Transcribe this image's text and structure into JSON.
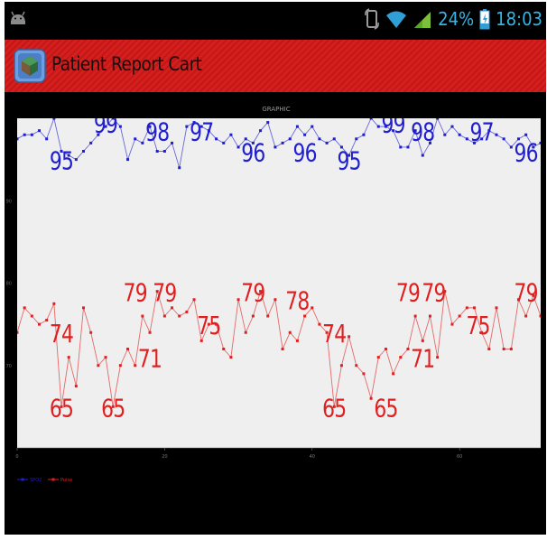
{
  "status_bar": {
    "battery": "24%",
    "time": "18:03",
    "icons": [
      "android-icon",
      "screen-rotation-icon",
      "wifi-icon",
      "signal-icon",
      "battery-charging-icon"
    ]
  },
  "action_bar": {
    "title": "Patient Report Cart",
    "icon": "app-logo-icon"
  },
  "chart_data": {
    "type": "line",
    "title": "GRAPHIC",
    "xlim": [
      0,
      71
    ],
    "ylim": [
      60,
      100
    ],
    "x_ticks": [
      "0",
      "20",
      "40",
      "60"
    ],
    "y_ticks": [
      "70",
      "80",
      "90"
    ],
    "series": [
      {
        "name": "SpO2",
        "color": "#1f1fd0",
        "values": [
          97.5,
          98,
          98,
          98.5,
          97.5,
          100,
          96,
          95.5,
          95,
          96,
          97,
          98,
          99,
          100,
          99,
          95,
          97.5,
          97,
          99,
          96,
          96,
          97,
          94,
          99,
          99.5,
          99,
          98.5,
          97.5,
          97,
          98,
          96.5,
          97.5,
          97,
          98.5,
          99.5,
          96.5,
          97,
          97.5,
          99,
          98,
          99,
          97.5,
          97,
          97.5,
          96.5,
          95.5,
          97.5,
          98,
          100,
          99,
          99,
          98.5,
          96.5,
          96.5,
          98.5,
          95.5,
          97,
          100,
          98,
          99,
          98,
          97.5,
          97,
          97.5,
          98.5,
          98,
          97.5,
          96.5,
          97.5,
          98,
          96.5,
          97
        ],
        "labels": [
          {
            "x": 6,
            "y": 95,
            "text": "95"
          },
          {
            "x": 12,
            "y": 99.5,
            "text": "99"
          },
          {
            "x": 19,
            "y": 98.5,
            "text": "98"
          },
          {
            "x": 25,
            "y": 98.5,
            "text": "97"
          },
          {
            "x": 32,
            "y": 96,
            "text": "96"
          },
          {
            "x": 39,
            "y": 96,
            "text": "96"
          },
          {
            "x": 45,
            "y": 95,
            "text": "95"
          },
          {
            "x": 51,
            "y": 99.5,
            "text": "99"
          },
          {
            "x": 55,
            "y": 98.5,
            "text": "98"
          },
          {
            "x": 63,
            "y": 98.5,
            "text": "97"
          },
          {
            "x": 69,
            "y": 96,
            "text": "96"
          }
        ]
      },
      {
        "name": "Pulse",
        "color": "#e02020",
        "values": [
          74,
          77,
          76,
          75,
          75.5,
          77.5,
          65,
          71,
          67.5,
          77,
          74,
          70,
          71,
          65,
          70,
          72,
          70,
          76,
          74,
          79,
          76,
          77,
          76,
          76.5,
          78,
          73,
          75,
          75,
          72,
          71,
          78,
          74,
          76,
          79,
          76,
          78,
          72,
          74,
          73,
          76,
          77,
          75,
          74,
          65,
          70,
          73.5,
          70,
          69,
          66,
          71,
          72,
          69,
          71,
          72,
          76,
          73,
          76,
          71,
          79,
          75,
          76,
          77,
          77,
          74,
          72,
          77,
          72,
          72,
          78,
          76,
          78.5,
          76,
          78
        ]
      }
    ],
    "pulse_labels": [
      {
        "x": 6,
        "y": 74,
        "text": "74"
      },
      {
        "x": 6,
        "y": 65,
        "text": "65"
      },
      {
        "x": 13,
        "y": 65,
        "text": "65"
      },
      {
        "x": 16,
        "y": 79,
        "text": "79"
      },
      {
        "x": 18,
        "y": 71,
        "text": "71"
      },
      {
        "x": 20,
        "y": 79,
        "text": "79"
      },
      {
        "x": 26,
        "y": 75,
        "text": "75"
      },
      {
        "x": 32,
        "y": 79,
        "text": "79"
      },
      {
        "x": 38,
        "y": 78,
        "text": "78"
      },
      {
        "x": 43,
        "y": 74,
        "text": "74"
      },
      {
        "x": 43,
        "y": 65,
        "text": "65"
      },
      {
        "x": 50,
        "y": 65,
        "text": "65"
      },
      {
        "x": 53,
        "y": 79,
        "text": "79"
      },
      {
        "x": 55,
        "y": 71,
        "text": "71"
      },
      {
        "x": 56.5,
        "y": 79,
        "text": "79"
      },
      {
        "x": 62.5,
        "y": 75,
        "text": "75"
      },
      {
        "x": 69,
        "y": 79,
        "text": "79"
      }
    ],
    "legend_placement": "bottom-left",
    "legend": [
      {
        "label": "SPO2",
        "color": "#1f1fd0"
      },
      {
        "label": "Pulse",
        "color": "#e02020"
      }
    ]
  }
}
